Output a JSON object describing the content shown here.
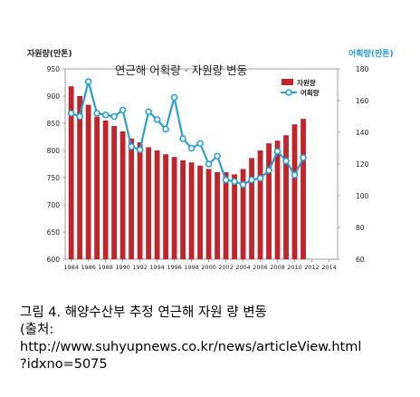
{
  "chart_data": {
    "type": "bar+line",
    "title": "연근해 어획량 · 자원량 변동",
    "y_left_label": "자원량(만톤)",
    "y_right_label": "어획량(만톤)",
    "y_left_lim": [
      600,
      950
    ],
    "y_left_ticks": [
      600,
      650,
      700,
      750,
      800,
      850,
      900,
      950
    ],
    "y_right_lim": [
      60,
      180
    ],
    "y_right_ticks": [
      60,
      80,
      100,
      120,
      140,
      160,
      180
    ],
    "x_tick_labels": [
      "1984",
      "1986",
      "1988",
      "1990",
      "1992",
      "1994",
      "1996",
      "1998",
      "2000",
      "2002",
      "2004",
      "2006",
      "2008",
      "2010",
      "2012",
      "2014"
    ],
    "x": [
      1984,
      1985,
      1986,
      1987,
      1988,
      1989,
      1990,
      1991,
      1992,
      1993,
      1994,
      1995,
      1996,
      1997,
      1998,
      1999,
      2000,
      2001,
      2002,
      2003,
      2004,
      2005,
      2006,
      2007,
      2008,
      2009,
      2010,
      2011
    ],
    "legend_position": "top-right",
    "grid": false,
    "colors": {
      "bar": "#c0252b",
      "line": "#2a9fd6",
      "right_axis": "#1e9bd7"
    },
    "series": [
      {
        "name": "자원량",
        "axis": "left",
        "type": "bar",
        "values": [
          918,
          900,
          884,
          862,
          855,
          845,
          835,
          822,
          815,
          806,
          800,
          793,
          788,
          782,
          778,
          772,
          766,
          760,
          760,
          756,
          766,
          786,
          800,
          813,
          818,
          828,
          848,
          858
        ]
      },
      {
        "name": "어획량",
        "axis": "right",
        "type": "line",
        "values": [
          152,
          150,
          172,
          152,
          151,
          150,
          154,
          131,
          129,
          153,
          148,
          142,
          162,
          136,
          130,
          133,
          120,
          125,
          110,
          109,
          107,
          110,
          111,
          116,
          128,
          122,
          113,
          124
        ]
      }
    ]
  },
  "caption": {
    "line1": "그림 4. 해양수산부 추정 연근해 자원 량 변동",
    "line2": "(출처:",
    "line3": "http://www.suhyupnews.co.kr/news/articleView.html",
    "line4": "?idxno=5075"
  }
}
